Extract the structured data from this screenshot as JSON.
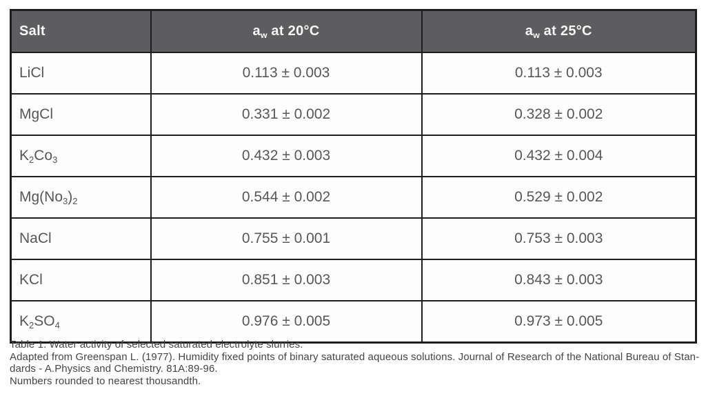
{
  "colors": {
    "header_background": "#5d5d5f",
    "header_text": "#f8f8f8",
    "body_text": "#57575b",
    "border": "#1d1d1f",
    "caption_text": "#454547",
    "page_background": "#fefefe"
  },
  "table": {
    "headers": [
      {
        "label_parts": [
          {
            "t": "Salt"
          }
        ]
      },
      {
        "label_parts": [
          {
            "t": "a"
          },
          {
            "t": "w",
            "sub": true
          },
          {
            "t": " at 20°C"
          }
        ]
      },
      {
        "label_parts": [
          {
            "t": "a"
          },
          {
            "t": "w",
            "sub": true
          },
          {
            "t": " at 25°C"
          }
        ]
      }
    ],
    "rows": [
      {
        "salt_parts": [
          {
            "t": "LiCl"
          }
        ],
        "aw20": "0.113 ± 0.003",
        "aw25": "0.113 ± 0.003"
      },
      {
        "salt_parts": [
          {
            "t": "MgCl"
          }
        ],
        "aw20": "0.331 ± 0.002",
        "aw25": "0.328 ± 0.002"
      },
      {
        "salt_parts": [
          {
            "t": "K"
          },
          {
            "t": "2",
            "sub": true
          },
          {
            "t": "Co"
          },
          {
            "t": "3",
            "sub": true
          }
        ],
        "aw20": "0.432 ± 0.003",
        "aw25": "0.432 ± 0.004"
      },
      {
        "salt_parts": [
          {
            "t": "Mg(No"
          },
          {
            "t": "3",
            "sub": true
          },
          {
            "t": ")"
          },
          {
            "t": "2",
            "sub": true
          }
        ],
        "aw20": "0.544 ± 0.002",
        "aw25": "0.529 ± 0.002"
      },
      {
        "salt_parts": [
          {
            "t": "NaCl"
          }
        ],
        "aw20": "0.755 ± 0.001",
        "aw25": "0.753 ± 0.003"
      },
      {
        "salt_parts": [
          {
            "t": "KCl"
          }
        ],
        "aw20": "0.851 ± 0.003",
        "aw25": "0.843 ± 0.003"
      },
      {
        "salt_parts": [
          {
            "t": "K"
          },
          {
            "t": "2",
            "sub": true
          },
          {
            "t": "SO"
          },
          {
            "t": "4",
            "sub": true
          }
        ],
        "aw20": "0.976 ± 0.005",
        "aw25": "0.973 ± 0.005"
      }
    ]
  },
  "caption": {
    "lines": [
      "Table 1. Water activity of selected saturated electrolyte slurries.",
      "Adapted from Greenspan L. (1977). Humidity fixed points of binary saturated aqueous solutions. Journal of Research of the National Bureau of Stan-",
      "dards - A.Physics and Chemistry. 81A:89-96.",
      "Numbers rounded to nearest thousandth."
    ]
  }
}
